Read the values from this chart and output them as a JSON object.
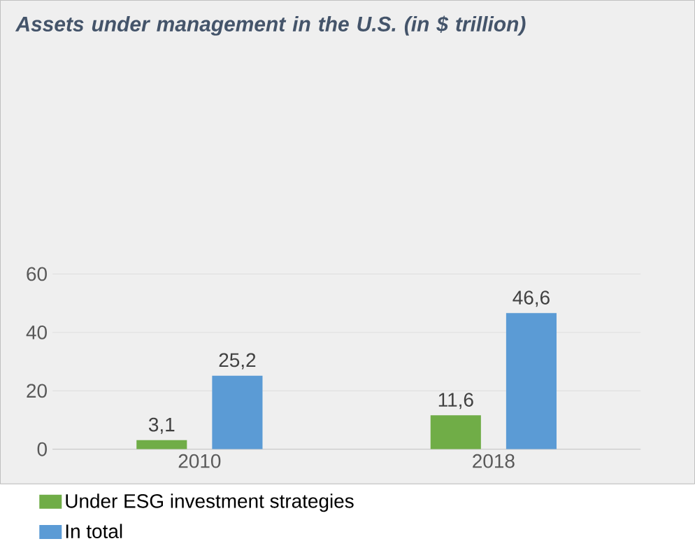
{
  "chart_data": {
    "type": "bar",
    "title": "Assets under management in the U.S. (in $ trillion)",
    "categories": [
      "2010",
      "2018"
    ],
    "series": [
      {
        "name": "Under ESG investment strategies",
        "color": "#70ad47",
        "values": [
          3.1,
          11.6
        ],
        "value_labels": [
          "3,1",
          "11,6"
        ]
      },
      {
        "name": "In total",
        "color": "#5b9bd5",
        "values": [
          25.2,
          46.6
        ],
        "value_labels": [
          "25,2",
          "46,6"
        ]
      }
    ],
    "ylim": [
      0,
      60
    ],
    "yticks": [
      0,
      20,
      40,
      60
    ],
    "grid": "y",
    "legend": "bottom"
  }
}
